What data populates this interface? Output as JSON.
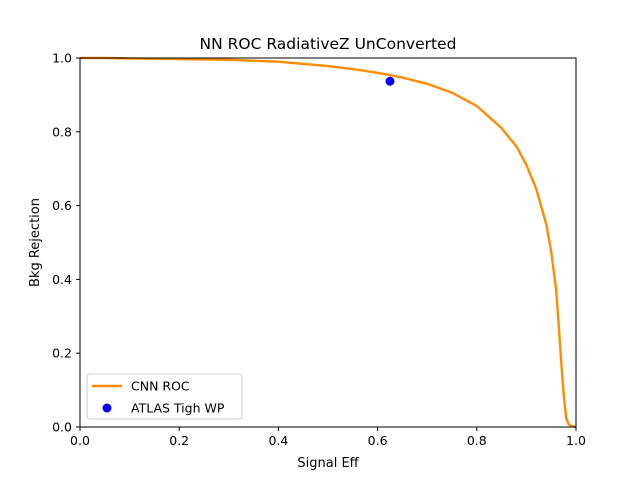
{
  "chart_data": {
    "type": "line",
    "title": "NN ROC RadiativeZ UnConverted",
    "xlabel": "Signal Eff",
    "ylabel": "Bkg Rejection",
    "xlim": [
      0.0,
      1.0
    ],
    "ylim": [
      0.0,
      1.0
    ],
    "xticks": [
      "0.0",
      "0.2",
      "0.4",
      "0.6",
      "0.8",
      "1.0"
    ],
    "yticks": [
      "0.0",
      "0.2",
      "0.4",
      "0.6",
      "0.8",
      "1.0"
    ],
    "grid": false,
    "legend_position": "lower-left",
    "series": [
      {
        "name": "CNN ROC",
        "kind": "line",
        "color": "#ff8c00",
        "x": [
          0.0,
          0.05,
          0.1,
          0.2,
          0.3,
          0.4,
          0.5,
          0.55,
          0.6,
          0.65,
          0.7,
          0.75,
          0.8,
          0.85,
          0.88,
          0.9,
          0.92,
          0.94,
          0.95,
          0.96,
          0.965,
          0.97,
          0.975,
          0.98,
          0.985,
          0.99,
          1.0
        ],
        "y": [
          1.0,
          1.0,
          0.999,
          0.997,
          0.995,
          0.99,
          0.978,
          0.97,
          0.96,
          0.947,
          0.93,
          0.906,
          0.87,
          0.81,
          0.76,
          0.71,
          0.645,
          0.55,
          0.475,
          0.37,
          0.28,
          0.18,
          0.09,
          0.025,
          0.008,
          0.003,
          0.0
        ]
      },
      {
        "name": "ATLAS Tigh WP",
        "kind": "point",
        "color": "#0000ff",
        "x": [
          0.625
        ],
        "y": [
          0.937
        ]
      }
    ]
  }
}
